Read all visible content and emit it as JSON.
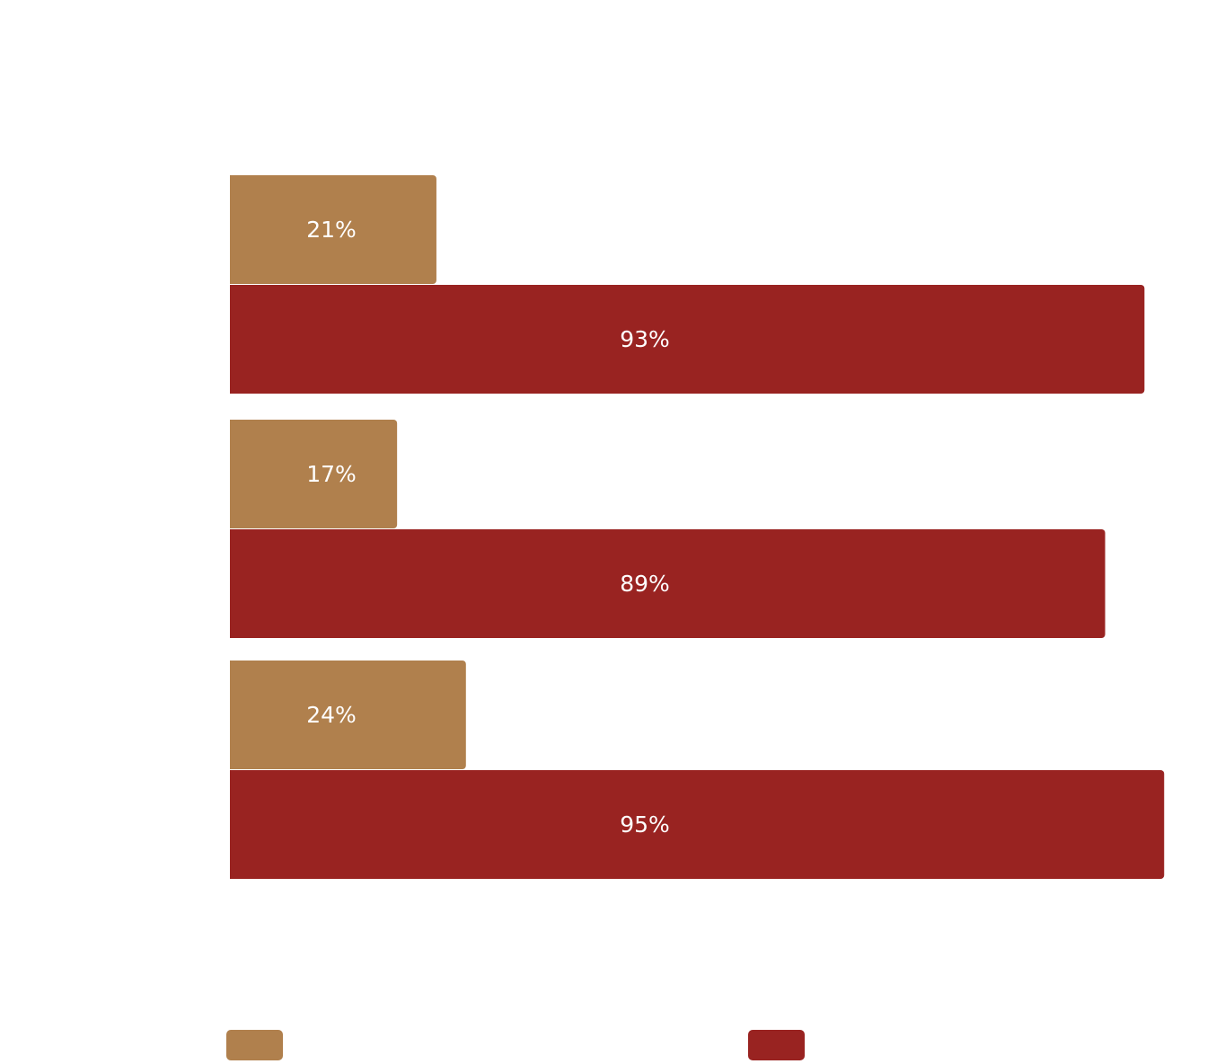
{
  "chart_data": {
    "type": "bar",
    "orientation": "horizontal",
    "categories": [
      "",
      "",
      ""
    ],
    "series": [
      {
        "values": [
          21,
          17,
          24
        ],
        "labels": [
          "21%",
          "17%",
          "24%"
        ],
        "color": "#B0804D"
      },
      {
        "values": [
          93,
          89,
          95
        ],
        "labels": [
          "93%",
          "89%",
          "95%"
        ],
        "color": "#992321"
      }
    ],
    "xlim": [
      0,
      100
    ],
    "grid": false,
    "legend_position": "bottom",
    "title": "",
    "xlabel": "",
    "ylabel": ""
  }
}
